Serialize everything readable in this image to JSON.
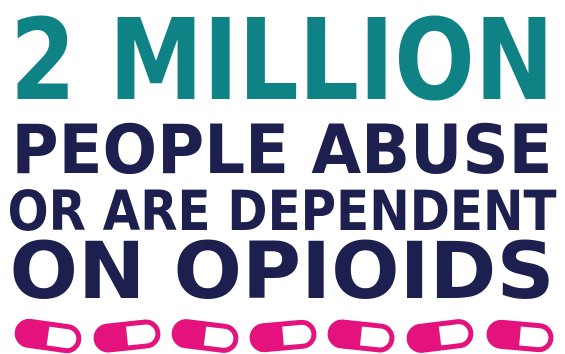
{
  "infographic": {
    "headline_number": "2 MILLION",
    "line_1": "PEOPLE ABUSE",
    "line_2": "OR ARE DEPENDENT",
    "line_3": "ON OPIOIDS"
  },
  "colors": {
    "teal": "#0f8286",
    "navy": "#1d1f4f",
    "magenta": "#e4127d",
    "white": "#ffffff"
  },
  "pills": {
    "icon": "capsule-icon",
    "count": 7
  }
}
